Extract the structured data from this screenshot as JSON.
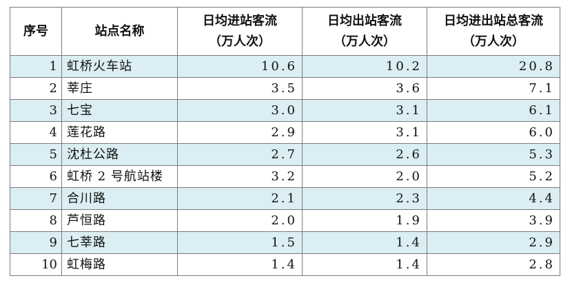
{
  "headers": {
    "index": "序号",
    "name": "站点名称",
    "inflow_line1": "日均进站客流",
    "inflow_line2": "（万人次）",
    "outflow_line1": "日均出站客流",
    "outflow_line2": "（万人次）",
    "total_line1": "日均进出站总客流",
    "total_line2": "（万人次）"
  },
  "rows": [
    {
      "index": "1",
      "name": "虹桥火车站",
      "inflow": "10.6",
      "outflow": "10.2",
      "total": "20.8"
    },
    {
      "index": "2",
      "name": "莘庄",
      "inflow": "3.5",
      "outflow": "3.6",
      "total": "7.1"
    },
    {
      "index": "3",
      "name": "七宝",
      "inflow": "3.0",
      "outflow": "3.1",
      "total": "6.1"
    },
    {
      "index": "4",
      "name": "莲花路",
      "inflow": "2.9",
      "outflow": "3.1",
      "total": "6.0"
    },
    {
      "index": "5",
      "name": "沈杜公路",
      "inflow": "2.7",
      "outflow": "2.6",
      "total": "5.3"
    },
    {
      "index": "6",
      "name": "虹桥 2 号航站楼",
      "inflow": "3.2",
      "outflow": "2.0",
      "total": "5.2"
    },
    {
      "index": "7",
      "name": "合川路",
      "inflow": "2.1",
      "outflow": "2.3",
      "total": "4.4"
    },
    {
      "index": "8",
      "name": "芦恒路",
      "inflow": "2.0",
      "outflow": "1.9",
      "total": "3.9"
    },
    {
      "index": "9",
      "name": "七莘路",
      "inflow": "1.5",
      "outflow": "1.4",
      "total": "2.9"
    },
    {
      "index": "10",
      "name": "虹梅路",
      "inflow": "1.4",
      "outflow": "1.4",
      "total": "2.8"
    }
  ],
  "colors": {
    "shaded_row": "#daeef3",
    "border": "#7a7a7a"
  }
}
